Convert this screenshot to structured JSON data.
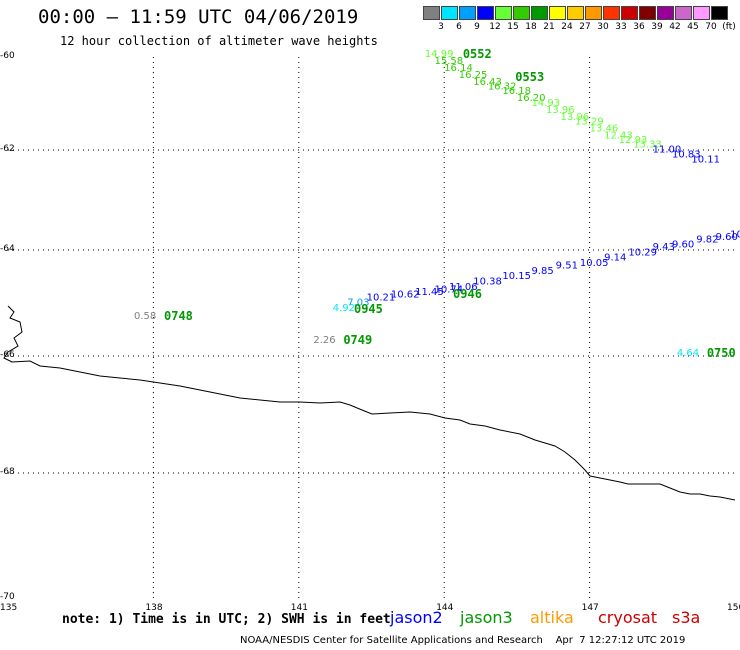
{
  "header": {
    "title": "00:00 – 11:59 UTC 04/06/2019",
    "subtitle": "12 hour collection of altimeter wave heights"
  },
  "legend": {
    "labels": [
      "3",
      "6",
      "9",
      "12",
      "15",
      "18",
      "21",
      "24",
      "27",
      "30",
      "33",
      "36",
      "39",
      "42",
      "45",
      "70",
      "(ft)"
    ],
    "colors": [
      "#808080",
      "#00e5ff",
      "#00a0ff",
      "#0000ff",
      "#66ff33",
      "#33cc00",
      "#009900",
      "#ffff00",
      "#ffcc00",
      "#ff9900",
      "#ff3300",
      "#cc0000",
      "#800000",
      "#990099",
      "#cc66cc",
      "#ff99ff",
      "#000000"
    ]
  },
  "axes": {
    "lon_ticks": [
      "135",
      "138",
      "141",
      "144",
      "147",
      "150"
    ],
    "lat_ticks": [
      "-60",
      "-62",
      "-64",
      "-66",
      "-68",
      "-70"
    ]
  },
  "tracks": [
    {
      "time": "0552",
      "color": "#009900",
      "points": [
        {
          "v": "14.99",
          "lon": 143.6,
          "lat": -60.0,
          "c": "#66ff33"
        },
        {
          "v": "15.58",
          "lon": 143.8,
          "lat": -60.15,
          "c": "#33cc00"
        },
        {
          "v": "16.14",
          "lon": 144.0,
          "lat": -60.3,
          "c": "#33cc00"
        },
        {
          "v": "16.25",
          "lon": 144.3,
          "lat": -60.45,
          "c": "#33cc00"
        }
      ]
    },
    {
      "time": "0553",
      "color": "#009900",
      "points": [
        {
          "v": "16.43",
          "lon": 144.6,
          "lat": -60.6,
          "c": "#33cc00"
        },
        {
          "v": "16.32",
          "lon": 144.9,
          "lat": -60.7,
          "c": "#33cc00"
        },
        {
          "v": "16.18",
          "lon": 145.2,
          "lat": -60.8,
          "c": "#33cc00"
        },
        {
          "v": "16.20",
          "lon": 145.5,
          "lat": -60.95,
          "c": "#33cc00"
        },
        {
          "v": "14.93",
          "lon": 145.8,
          "lat": -61.05,
          "c": "#66ff33"
        },
        {
          "v": "13.96",
          "lon": 146.1,
          "lat": -61.2,
          "c": "#66ff33"
        },
        {
          "v": "13.96",
          "lon": 146.4,
          "lat": -61.35,
          "c": "#66ff33"
        },
        {
          "v": "13.29",
          "lon": 146.7,
          "lat": -61.45,
          "c": "#66ff33"
        },
        {
          "v": "13.46",
          "lon": 147.0,
          "lat": -61.6,
          "c": "#66ff33"
        },
        {
          "v": "12.43",
          "lon": 147.3,
          "lat": -61.75,
          "c": "#66ff33"
        },
        {
          "v": "12.93",
          "lon": 147.6,
          "lat": -61.85,
          "c": "#66ff33"
        },
        {
          "v": "13.33",
          "lon": 147.9,
          "lat": -61.95,
          "c": "#66ff33"
        },
        {
          "v": "11.00",
          "lon": 148.3,
          "lat": -62.05,
          "c": "#0000ff"
        },
        {
          "v": "10.83",
          "lon": 148.7,
          "lat": -62.15,
          "c": "#0000ff"
        },
        {
          "v": "10.11",
          "lon": 149.1,
          "lat": -62.25,
          "c": "#0000ff"
        }
      ]
    },
    {
      "time": "0945",
      "color": "#009900",
      "points": [
        {
          "v": "4.92",
          "lon": 141.7,
          "lat": -65.15,
          "c": "#00e5ff"
        },
        {
          "v": "7.03",
          "lon": 142.0,
          "lat": -65.05,
          "c": "#00a0ff"
        },
        {
          "v": "10.21",
          "lon": 142.4,
          "lat": -64.95,
          "c": "#0000ff"
        },
        {
          "v": "10.62",
          "lon": 142.9,
          "lat": -64.9,
          "c": "#0000ff"
        },
        {
          "v": "11.45",
          "lon": 143.4,
          "lat": -64.85,
          "c": "#0000ff"
        },
        {
          "v": "10.74",
          "lon": 143.8,
          "lat": -64.8,
          "c": "#0000ff"
        }
      ]
    },
    {
      "time": "0946",
      "color": "#009900",
      "points": [
        {
          "v": "11.06",
          "lon": 144.1,
          "lat": -64.75,
          "c": "#0000ff"
        },
        {
          "v": "10.38",
          "lon": 144.6,
          "lat": -64.65,
          "c": "#0000ff"
        },
        {
          "v": "10.15",
          "lon": 145.2,
          "lat": -64.55,
          "c": "#0000ff"
        },
        {
          "v": "9.85",
          "lon": 145.8,
          "lat": -64.45,
          "c": "#0000ff"
        },
        {
          "v": "9.51",
          "lon": 146.3,
          "lat": -64.35,
          "c": "#0000ff"
        },
        {
          "v": "10.05",
          "lon": 146.8,
          "lat": -64.3,
          "c": "#0000ff"
        },
        {
          "v": "9.14",
          "lon": 147.3,
          "lat": -64.2,
          "c": "#0000ff"
        },
        {
          "v": "10.29",
          "lon": 147.8,
          "lat": -64.1,
          "c": "#0000ff"
        },
        {
          "v": "9.43",
          "lon": 148.3,
          "lat": -64.0,
          "c": "#0000ff"
        },
        {
          "v": "9.60",
          "lon": 148.7,
          "lat": -63.95,
          "c": "#0000ff"
        },
        {
          "v": "9.82",
          "lon": 149.2,
          "lat": -63.85,
          "c": "#0000ff"
        },
        {
          "v": "9.60",
          "lon": 149.6,
          "lat": -63.8,
          "c": "#0000ff"
        },
        {
          "v": "10.",
          "lon": 149.9,
          "lat": -63.75,
          "c": "#0000ff"
        }
      ]
    },
    {
      "time": "0748",
      "color": "#009900",
      "points": [
        {
          "v": "0.58",
          "lon": 137.6,
          "lat": -65.3,
          "c": "#808080"
        }
      ]
    },
    {
      "time": "0749",
      "color": "#009900",
      "points": [
        {
          "v": "2.26",
          "lon": 141.3,
          "lat": -65.75,
          "c": "#808080"
        }
      ]
    },
    {
      "time": "0750",
      "color": "#009900",
      "points": [
        {
          "v": "4.64",
          "lon": 148.8,
          "lat": -66.0,
          "c": "#00e5ff"
        }
      ]
    }
  ],
  "satellites": [
    {
      "name": "jason2",
      "color": "#0000ff"
    },
    {
      "name": "jason3",
      "color": "#009900"
    },
    {
      "name": "altika",
      "color": "#ff9900"
    },
    {
      "name": "cryosat",
      "color": "#cc0000"
    },
    {
      "name": "s3a",
      "color": "#cc0000"
    }
  ],
  "note": "note: 1) Time is in UTC; 2) SWH is in feet",
  "footer": "NOAA/NESDIS Center for Satellite Applications and Research    Apr  7 12:27:12 UTC 2019"
}
